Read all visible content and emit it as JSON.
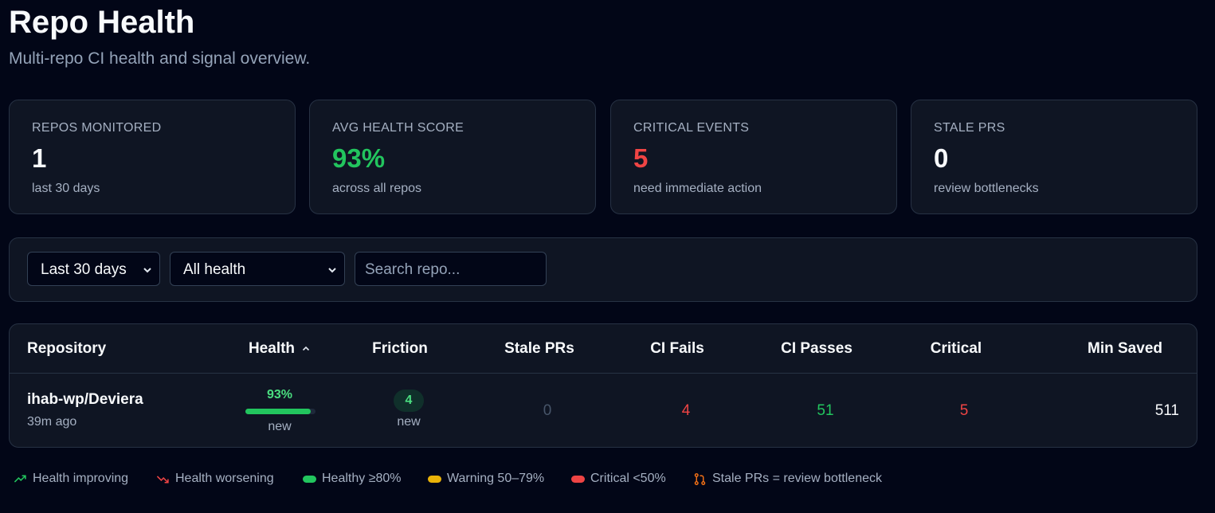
{
  "header": {
    "title": "Repo Health",
    "subtitle": "Multi-repo CI health and signal overview."
  },
  "stats": [
    {
      "label": "REPOS MONITORED",
      "value": "1",
      "note": "last 30 days"
    },
    {
      "label": "AVG HEALTH SCORE",
      "value": "93%",
      "note": "across all repos"
    },
    {
      "label": "CRITICAL EVENTS",
      "value": "5",
      "note": "need immediate action"
    },
    {
      "label": "STALE PRS",
      "value": "0",
      "note": "review bottlenecks"
    }
  ],
  "filters": {
    "range": "Last 30 days",
    "health": "All health",
    "search_placeholder": "Search repo..."
  },
  "table": {
    "columns": [
      "Repository",
      "Health",
      "Friction",
      "Stale PRs",
      "CI Fails",
      "CI Passes",
      "Critical",
      "Min Saved"
    ],
    "rows": [
      {
        "repo": "ihab-wp/Deviera",
        "updated": "39m ago",
        "health": {
          "value": 93,
          "label": "93%",
          "note": "new"
        },
        "friction": {
          "value": "4",
          "note": "new"
        },
        "stale_prs": "0",
        "ci_fails": "4",
        "ci_passes": "51",
        "critical": "5",
        "min_saved": "511"
      }
    ]
  },
  "legend": [
    "Health improving",
    "Health worsening",
    "Healthy ≥80%",
    "Warning 50–79%",
    "Critical <50%",
    "Stale PRs = review bottleneck"
  ]
}
